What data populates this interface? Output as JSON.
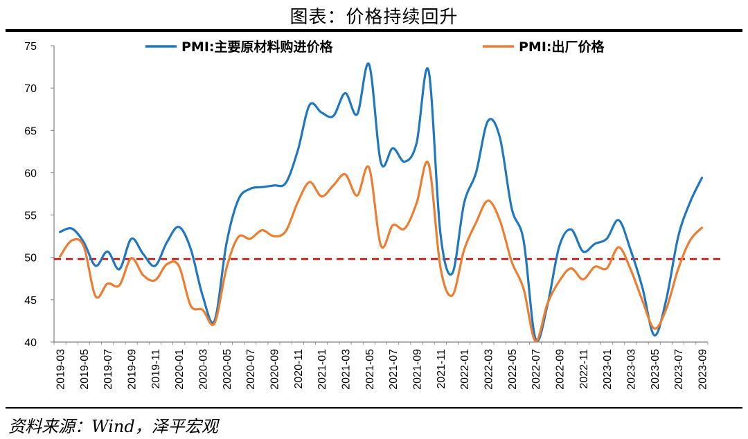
{
  "figure_title": "图表：价格持续回升",
  "source_note": "资料来源：Wind，泽平宏观",
  "colors": {
    "input_price": "#1f77c0",
    "output_price": "#ed7d31",
    "ref_line": "#e00000"
  },
  "chart_data": {
    "type": "line",
    "title": "",
    "xlabel": "",
    "ylabel": "",
    "ylim": [
      40,
      75
    ],
    "yticks": [
      40,
      45,
      50,
      55,
      60,
      65,
      70,
      75
    ],
    "x": [
      "2019-03",
      "2019-04",
      "2019-05",
      "2019-06",
      "2019-07",
      "2019-08",
      "2019-09",
      "2019-10",
      "2019-11",
      "2019-12",
      "2020-01",
      "2020-02",
      "2020-03",
      "2020-04",
      "2020-05",
      "2020-06",
      "2020-07",
      "2020-08",
      "2020-09",
      "2020-10",
      "2020-11",
      "2020-12",
      "2021-01",
      "2021-02",
      "2021-03",
      "2021-04",
      "2021-05",
      "2021-06",
      "2021-07",
      "2021-08",
      "2021-09",
      "2021-10",
      "2021-11",
      "2021-12",
      "2022-01",
      "2022-02",
      "2022-03",
      "2022-04",
      "2022-05",
      "2022-06",
      "2022-07",
      "2022-08",
      "2022-09",
      "2022-10",
      "2022-11",
      "2022-12",
      "2023-01",
      "2023-02",
      "2023-03",
      "2023-04",
      "2023-05",
      "2023-06",
      "2023-07",
      "2023-08",
      "2023-09"
    ],
    "x_tick_labels": [
      "2019-03",
      "2019-05",
      "2019-07",
      "2019-09",
      "2019-11",
      "2020-01",
      "2020-03",
      "2020-05",
      "2020-07",
      "2020-09",
      "2020-11",
      "2021-01",
      "2021-03",
      "2021-05",
      "2021-07",
      "2021-09",
      "2021-11",
      "2022-01",
      "2022-03",
      "2022-05",
      "2022-07",
      "2022-09",
      "2022-11",
      "2023-01",
      "2023-03",
      "2023-05",
      "2023-07",
      "2023-09"
    ],
    "series": [
      {
        "name": "PMI:主要原材料购进价格",
        "values": [
          53.0,
          53.4,
          51.8,
          49.0,
          50.7,
          48.6,
          52.2,
          50.4,
          49.0,
          51.8,
          53.6,
          51.0,
          45.5,
          42.5,
          51.6,
          56.8,
          58.1,
          58.3,
          58.5,
          58.8,
          62.6,
          68.0,
          67.1,
          66.7,
          69.4,
          66.9,
          72.8,
          61.2,
          62.9,
          61.3,
          63.5,
          72.1,
          52.9,
          48.1,
          56.4,
          60.0,
          66.1,
          64.2,
          55.8,
          52.0,
          40.4,
          44.3,
          51.3,
          53.3,
          50.7,
          51.6,
          52.2,
          54.4,
          50.9,
          46.4,
          40.8,
          45.0,
          52.4,
          56.5,
          59.4
        ]
      },
      {
        "name": "PMI:出厂价格",
        "values": [
          50.1,
          52.0,
          51.3,
          45.4,
          46.9,
          46.7,
          49.9,
          47.9,
          47.3,
          49.2,
          49.0,
          44.3,
          43.8,
          42.2,
          48.7,
          52.4,
          52.2,
          53.2,
          52.5,
          53.1,
          56.5,
          58.9,
          57.2,
          58.5,
          59.8,
          57.3,
          60.6,
          51.4,
          53.8,
          53.4,
          56.4,
          61.1,
          48.9,
          45.5,
          50.9,
          54.1,
          56.7,
          54.4,
          49.5,
          46.3,
          40.1,
          44.5,
          47.2,
          48.7,
          47.4,
          48.9,
          48.7,
          51.2,
          48.6,
          44.9,
          41.6,
          43.9,
          48.6,
          52.0,
          53.5
        ]
      }
    ],
    "reference_line": {
      "value": 49.8,
      "style": "dashed"
    },
    "legend_position": "top",
    "grid": false
  }
}
